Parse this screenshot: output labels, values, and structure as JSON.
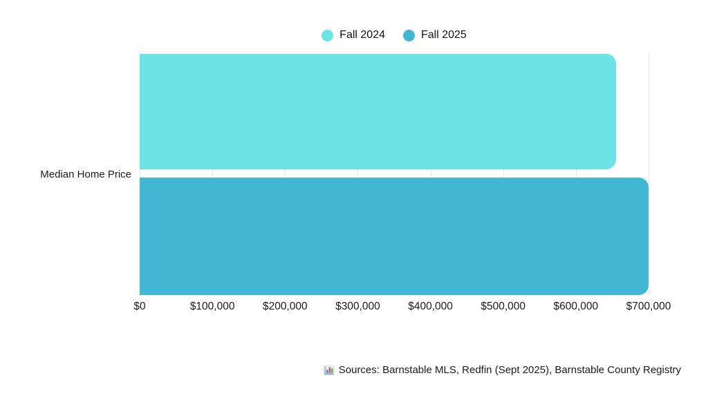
{
  "legend": {
    "items": [
      {
        "label": "Fall 2024",
        "color": "#6ce4e6"
      },
      {
        "label": "Fall 2025",
        "color": "#41b7d4"
      }
    ]
  },
  "chart_data": {
    "type": "bar",
    "orientation": "horizontal",
    "title": "",
    "categories": [
      "Median Home Price"
    ],
    "series": [
      {
        "name": "Fall 2024",
        "values": [
          655000
        ],
        "color": "#6ce4e6"
      },
      {
        "name": "Fall 2025",
        "values": [
          700000
        ],
        "color": "#41b7d4"
      }
    ],
    "xlim": [
      0,
      700000
    ],
    "x_ticks": [
      "$0",
      "$100,000",
      "$200,000",
      "$300,000",
      "$400,000",
      "$500,000",
      "$600,000",
      "$700,000"
    ],
    "xlabel": "",
    "ylabel": "",
    "grid": "vertical",
    "legend_position": "top-center",
    "bar_corner": "rounded-right"
  },
  "axis": {
    "category_label": "Median Home Price"
  },
  "footer": {
    "icon": "bar-chart-emoji",
    "text": "Sources: Barnstable MLS, Redfin (Sept 2025), Barnstable County Registry"
  }
}
